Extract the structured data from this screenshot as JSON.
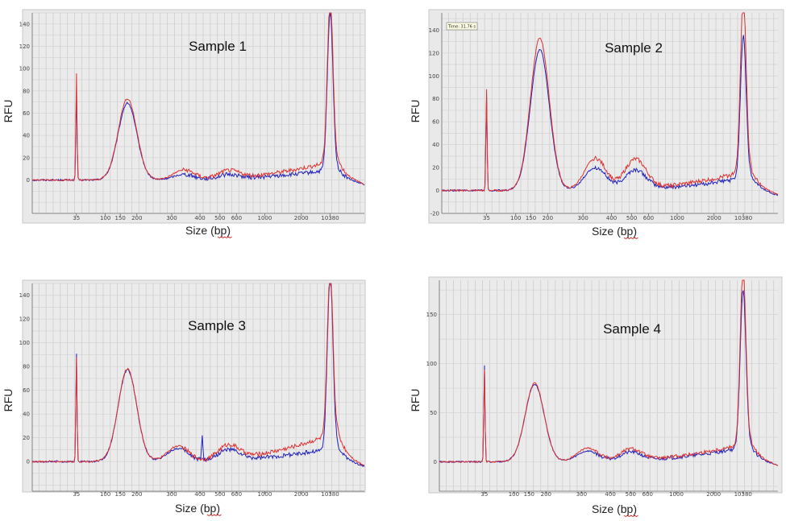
{
  "chart_data": [
    {
      "type": "line",
      "title": "Sample 1",
      "xlabel": "Size (bp)",
      "ylabel": "RFU",
      "x_ticks": [
        "35",
        "100",
        "150",
        "200",
        "300",
        "400",
        "500",
        "600",
        "1000",
        "2000",
        "10380"
      ],
      "y_ticks": [
        0,
        20,
        40,
        60,
        80,
        100,
        120,
        140
      ],
      "ylim": [
        -30,
        150
      ],
      "peaks": {
        "red": [
          {
            "size": "35",
            "rfu": 97
          },
          {
            "size": "170",
            "rfu": 73
          },
          {
            "size": "340",
            "rfu": 9
          },
          {
            "size": "550",
            "rfu": 7
          },
          {
            "size": "10380",
            "rfu": 147
          }
        ],
        "blue": [
          {
            "size": "35",
            "rfu": 82
          },
          {
            "size": "170",
            "rfu": 69
          },
          {
            "size": "340",
            "rfu": 5
          },
          {
            "size": "550",
            "rfu": 4
          },
          {
            "size": "10380",
            "rfu": 141
          }
        ]
      },
      "series": [
        {
          "name": "red",
          "color": "#dd3333"
        },
        {
          "name": "blue",
          "color": "#2222bb"
        }
      ]
    },
    {
      "type": "line",
      "title": "Sample 2",
      "xlabel": "Size (bp)",
      "ylabel": "RFU",
      "tooltip": "Time: 31.76 s",
      "x_ticks": [
        "35",
        "100",
        "150",
        "200",
        "300",
        "400",
        "500",
        "600",
        "1000",
        "2000",
        "10380"
      ],
      "y_ticks": [
        -20,
        0,
        20,
        40,
        60,
        80,
        100,
        120,
        140
      ],
      "ylim": [
        -20,
        155
      ],
      "peaks": {
        "red": [
          {
            "size": "35",
            "rfu": 90
          },
          {
            "size": "175",
            "rfu": 133
          },
          {
            "size": "340",
            "rfu": 28
          },
          {
            "size": "520",
            "rfu": 26
          },
          {
            "size": "10380",
            "rfu": 153
          }
        ],
        "blue": [
          {
            "size": "35",
            "rfu": 85
          },
          {
            "size": "175",
            "rfu": 123
          },
          {
            "size": "340",
            "rfu": 20
          },
          {
            "size": "520",
            "rfu": 17
          },
          {
            "size": "10380",
            "rfu": 125
          }
        ]
      },
      "series": [
        {
          "name": "red",
          "color": "#dd3333"
        },
        {
          "name": "blue",
          "color": "#2222bb"
        }
      ]
    },
    {
      "type": "line",
      "title": "Sample 3",
      "xlabel": "Size (bp)",
      "ylabel": "RFU",
      "x_ticks": [
        "35",
        "100",
        "150",
        "200",
        "300",
        "400",
        "500",
        "600",
        "1000",
        "2000",
        "10380"
      ],
      "y_ticks": [
        0,
        20,
        40,
        60,
        80,
        100,
        120,
        140
      ],
      "ylim": [
        -25,
        150
      ],
      "peaks": {
        "red": [
          {
            "size": "35",
            "rfu": 90
          },
          {
            "size": "170",
            "rfu": 78
          },
          {
            "size": "320",
            "rfu": 13
          },
          {
            "size": "550",
            "rfu": 12
          },
          {
            "size": "10380",
            "rfu": 140
          }
        ],
        "blue": [
          {
            "size": "35",
            "rfu": 92
          },
          {
            "size": "170",
            "rfu": 77
          },
          {
            "size": "320",
            "rfu": 11
          },
          {
            "size": "410",
            "rfu": 20
          },
          {
            "size": "550",
            "rfu": 9
          },
          {
            "size": "10380",
            "rfu": 146
          }
        ]
      },
      "series": [
        {
          "name": "red",
          "color": "#dd3333"
        },
        {
          "name": "blue",
          "color": "#2222bb"
        }
      ]
    },
    {
      "type": "line",
      "title": "Sample 4",
      "xlabel": "Size (bp)",
      "ylabel": "RFU",
      "x_ticks": [
        "35",
        "100",
        "150",
        "200",
        "300",
        "400",
        "500",
        "600",
        "1000",
        "2000",
        "10380"
      ],
      "y_ticks": [
        0,
        50,
        100,
        150
      ],
      "ylim": [
        -30,
        185
      ],
      "peaks": {
        "red": [
          {
            "size": "35",
            "rfu": 95
          },
          {
            "size": "165",
            "rfu": 80
          },
          {
            "size": "320",
            "rfu": 14
          },
          {
            "size": "500",
            "rfu": 12
          },
          {
            "size": "10380",
            "rfu": 178
          }
        ],
        "blue": [
          {
            "size": "35",
            "rfu": 100
          },
          {
            "size": "165",
            "rfu": 79
          },
          {
            "size": "320",
            "rfu": 11
          },
          {
            "size": "500",
            "rfu": 9
          },
          {
            "size": "10380",
            "rfu": 162
          }
        ]
      },
      "series": [
        {
          "name": "red",
          "color": "#dd3333"
        },
        {
          "name": "blue",
          "color": "#2222bb"
        }
      ]
    }
  ]
}
